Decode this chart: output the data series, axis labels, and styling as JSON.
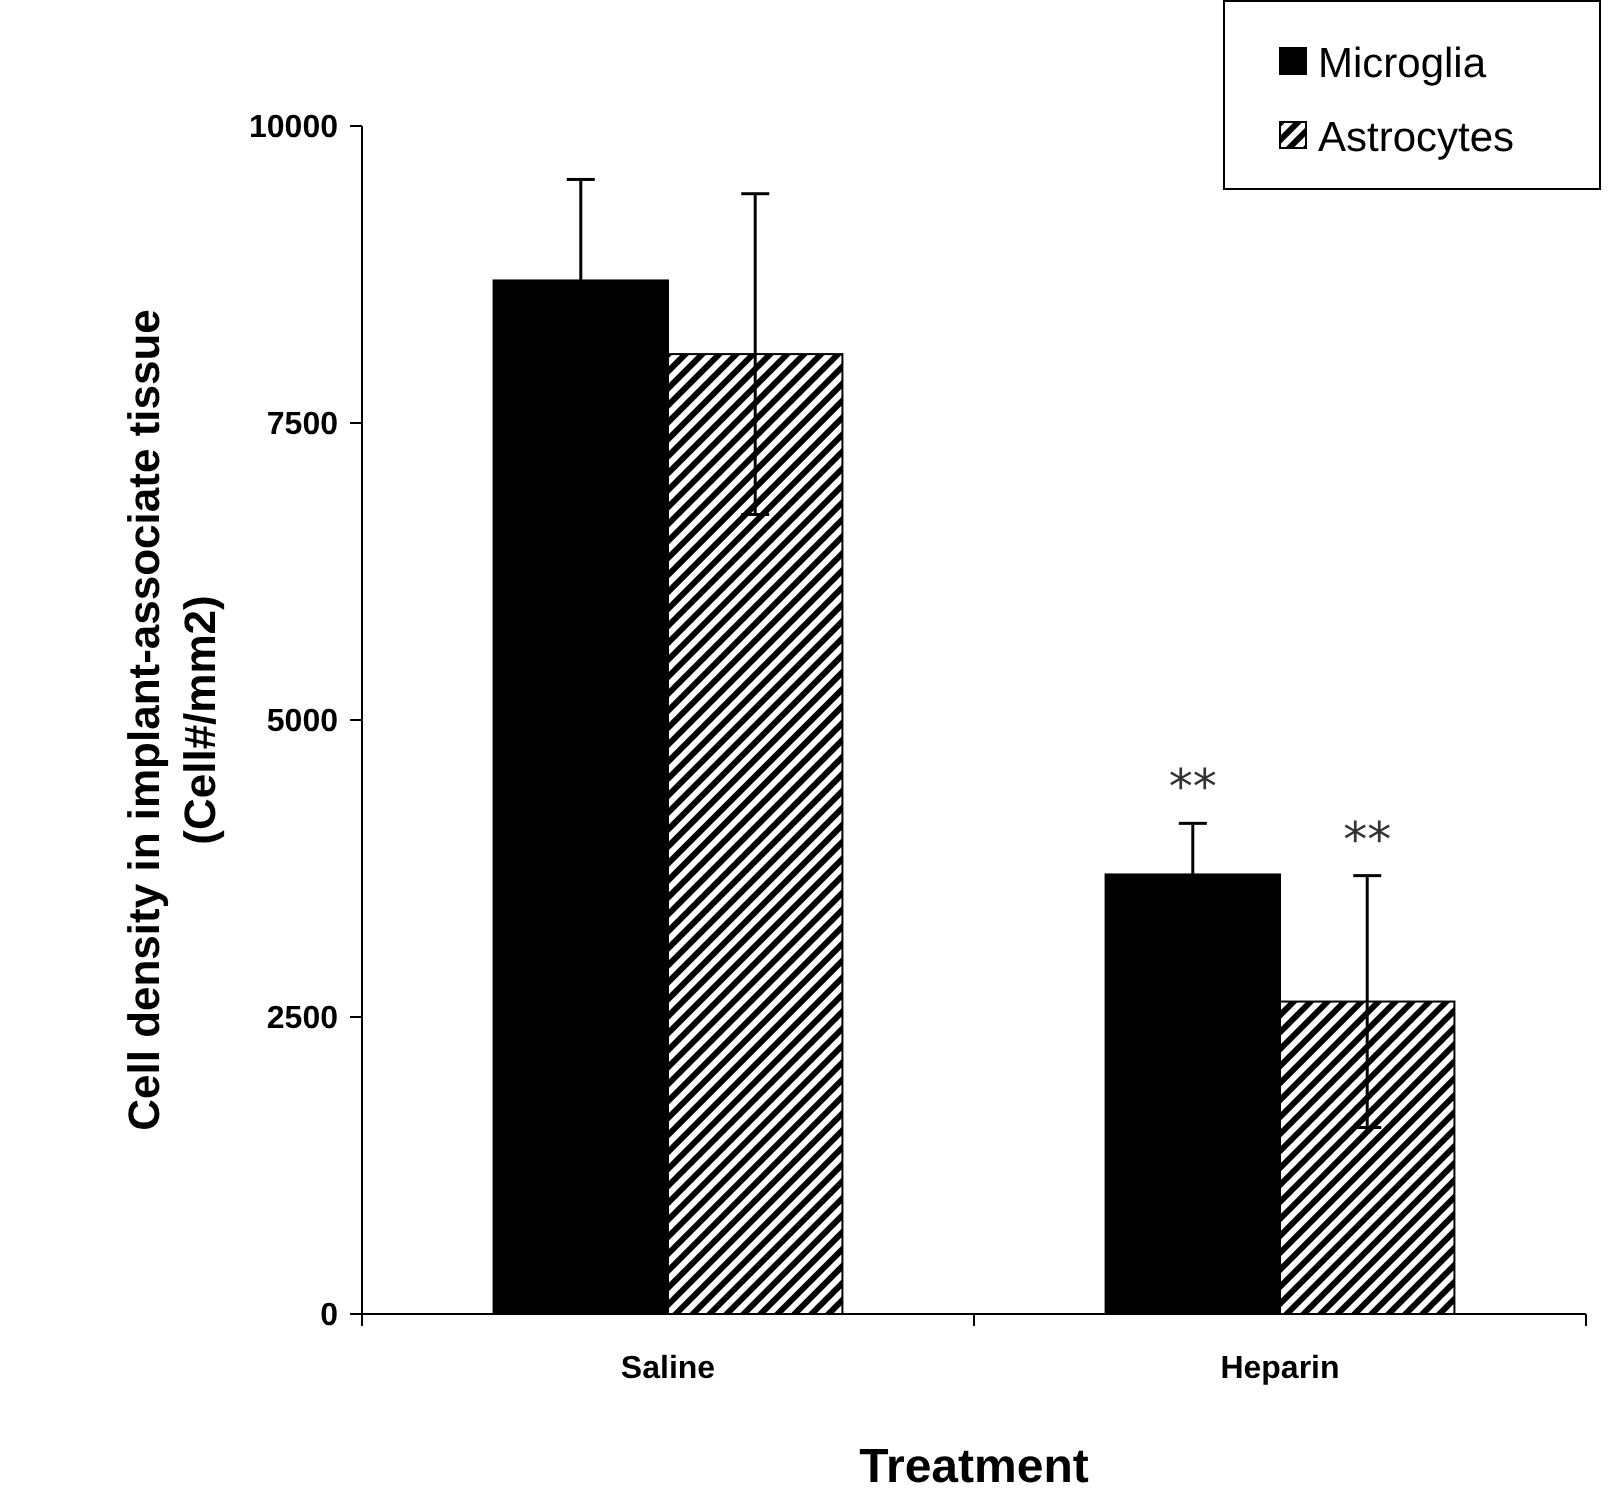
{
  "chart_data": {
    "type": "bar",
    "xlabel": "Treatment",
    "ylabel": "Cell density in implant-associate tissue\n(Cell#/mm2)",
    "categories": [
      "Saline",
      "Heparin"
    ],
    "series": [
      {
        "name": "Microglia",
        "color": "#000000",
        "values": [
          8700,
          3700
        ],
        "errors": [
          850,
          430
        ]
      },
      {
        "name": "Astrocytes",
        "color": "#000000",
        "values": [
          8080,
          2630
        ],
        "errors": [
          1350,
          1060
        ]
      }
    ],
    "ylim": [
      0,
      10000
    ],
    "yticks": [
      0,
      2500,
      5000,
      7500,
      10000
    ],
    "legend": "top right",
    "grid": false,
    "annotations": [
      "**",
      "**"
    ]
  }
}
